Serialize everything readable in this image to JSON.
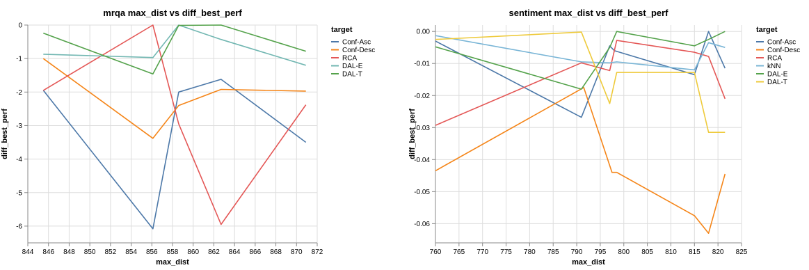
{
  "chart_data": [
    {
      "type": "line",
      "title": "mrqa max_dist vs diff_best_perf",
      "xlabel": "max_dist",
      "ylabel": "diff_best_perf",
      "xlim": [
        844,
        872
      ],
      "ylim": [
        -6.5,
        0
      ],
      "xticks": [
        844,
        846,
        848,
        850,
        852,
        854,
        856,
        858,
        860,
        862,
        864,
        866,
        868,
        870,
        872
      ],
      "xtick_labels": [
        "844",
        "846",
        "848",
        "850",
        "852",
        "854",
        "856",
        "858",
        "860",
        "862",
        "864",
        "866",
        "868",
        "870",
        "872"
      ],
      "yticks": [
        0,
        -1,
        -2,
        -3,
        -4,
        -5,
        -6
      ],
      "ytick_labels": [
        "0",
        "-1",
        "-2",
        "-3",
        "-4",
        "-5",
        "-6"
      ],
      "grid": true,
      "legend_title": "target",
      "legend_position": "right",
      "series": [
        {
          "name": "Conf-Asc",
          "color": "#4c78a8",
          "x": [
            845.5,
            856.1,
            858.6,
            862.7,
            870.9
          ],
          "y": [
            -1.95,
            -6.08,
            -2.0,
            -1.62,
            -3.5
          ]
        },
        {
          "name": "Conf-Desc",
          "color": "#f58518",
          "x": [
            845.5,
            856.1,
            858.6,
            862.7,
            870.9
          ],
          "y": [
            -1.0,
            -3.38,
            -2.4,
            -1.92,
            -1.97
          ]
        },
        {
          "name": "RCA",
          "color": "#e45756",
          "x": [
            845.5,
            856.1,
            858.6,
            862.7,
            870.9
          ],
          "y": [
            -1.95,
            0.0,
            -2.95,
            -5.95,
            -2.38
          ]
        },
        {
          "name": "DAL-E",
          "color": "#72b7b2",
          "x": [
            845.5,
            856.1,
            858.6,
            862.7,
            870.9
          ],
          "y": [
            -0.87,
            -0.97,
            0.0,
            -0.43,
            -1.2
          ]
        },
        {
          "name": "DAL-T",
          "color": "#54a24b",
          "x": [
            845.5,
            856.1,
            858.6,
            862.7,
            870.9
          ],
          "y": [
            -0.24,
            -1.46,
            -0.01,
            0.0,
            -0.78
          ]
        }
      ]
    },
    {
      "type": "line",
      "title": "sentiment max_dist vs diff_best_perf",
      "xlabel": "max_dist",
      "ylabel": "diff_best_perf",
      "xlim": [
        760,
        825
      ],
      "ylim": [
        -0.066,
        0.002
      ],
      "xticks": [
        760,
        765,
        770,
        775,
        780,
        785,
        790,
        795,
        800,
        805,
        810,
        815,
        820,
        825
      ],
      "xtick_labels": [
        "760",
        "765",
        "770",
        "775",
        "780",
        "785",
        "790",
        "795",
        "800",
        "805",
        "810",
        "815",
        "820",
        "825"
      ],
      "yticks": [
        0.0,
        -0.01,
        -0.02,
        -0.03,
        -0.04,
        -0.05,
        -0.06
      ],
      "ytick_labels": [
        "0.00",
        "-0.01",
        "-0.02",
        "-0.03",
        "-0.04",
        "-0.05",
        "-0.06"
      ],
      "grid": true,
      "legend_title": "target",
      "legend_position": "right",
      "series": [
        {
          "name": "Conf-Asc",
          "color": "#4c78a8",
          "x": [
            760,
            791,
            797,
            798,
            815,
            818,
            821.5
          ],
          "y": [
            -0.003,
            -0.0268,
            -0.0045,
            -0.006,
            -0.0135,
            0.0,
            -0.0115
          ]
        },
        {
          "name": "Conf-Desc",
          "color": "#f58518",
          "x": [
            760,
            791.5,
            797.5,
            798.5,
            815,
            818,
            821.5
          ],
          "y": [
            -0.0435,
            -0.0175,
            -0.044,
            -0.044,
            -0.0575,
            -0.063,
            -0.0445
          ]
        },
        {
          "name": "RCA",
          "color": "#e45756",
          "x": [
            760,
            791,
            797,
            798.5,
            815,
            818,
            821.5
          ],
          "y": [
            -0.0293,
            -0.0098,
            -0.0122,
            -0.0028,
            -0.0065,
            -0.0078,
            -0.021
          ]
        },
        {
          "name": "kNN",
          "color": "#79b5d6",
          "x": [
            760,
            791,
            797,
            798.5,
            815,
            818,
            821.5
          ],
          "y": [
            -0.0013,
            -0.0095,
            -0.0098,
            -0.0095,
            -0.012,
            -0.0035,
            -0.005
          ]
        },
        {
          "name": "DAL-E",
          "color": "#54a24b",
          "x": [
            760,
            791,
            797,
            798.5,
            815,
            818,
            821.5
          ],
          "y": [
            -0.0048,
            -0.018,
            -0.005,
            0.0,
            -0.0045,
            -0.0025,
            0.0
          ]
        },
        {
          "name": "DAL-T",
          "color": "#eeca3b",
          "x": [
            760,
            791,
            797,
            798.5,
            815,
            818,
            821.5
          ],
          "y": [
            -0.0025,
            -0.0002,
            -0.0225,
            -0.0128,
            -0.0128,
            -0.0315,
            -0.0315
          ]
        }
      ]
    }
  ]
}
